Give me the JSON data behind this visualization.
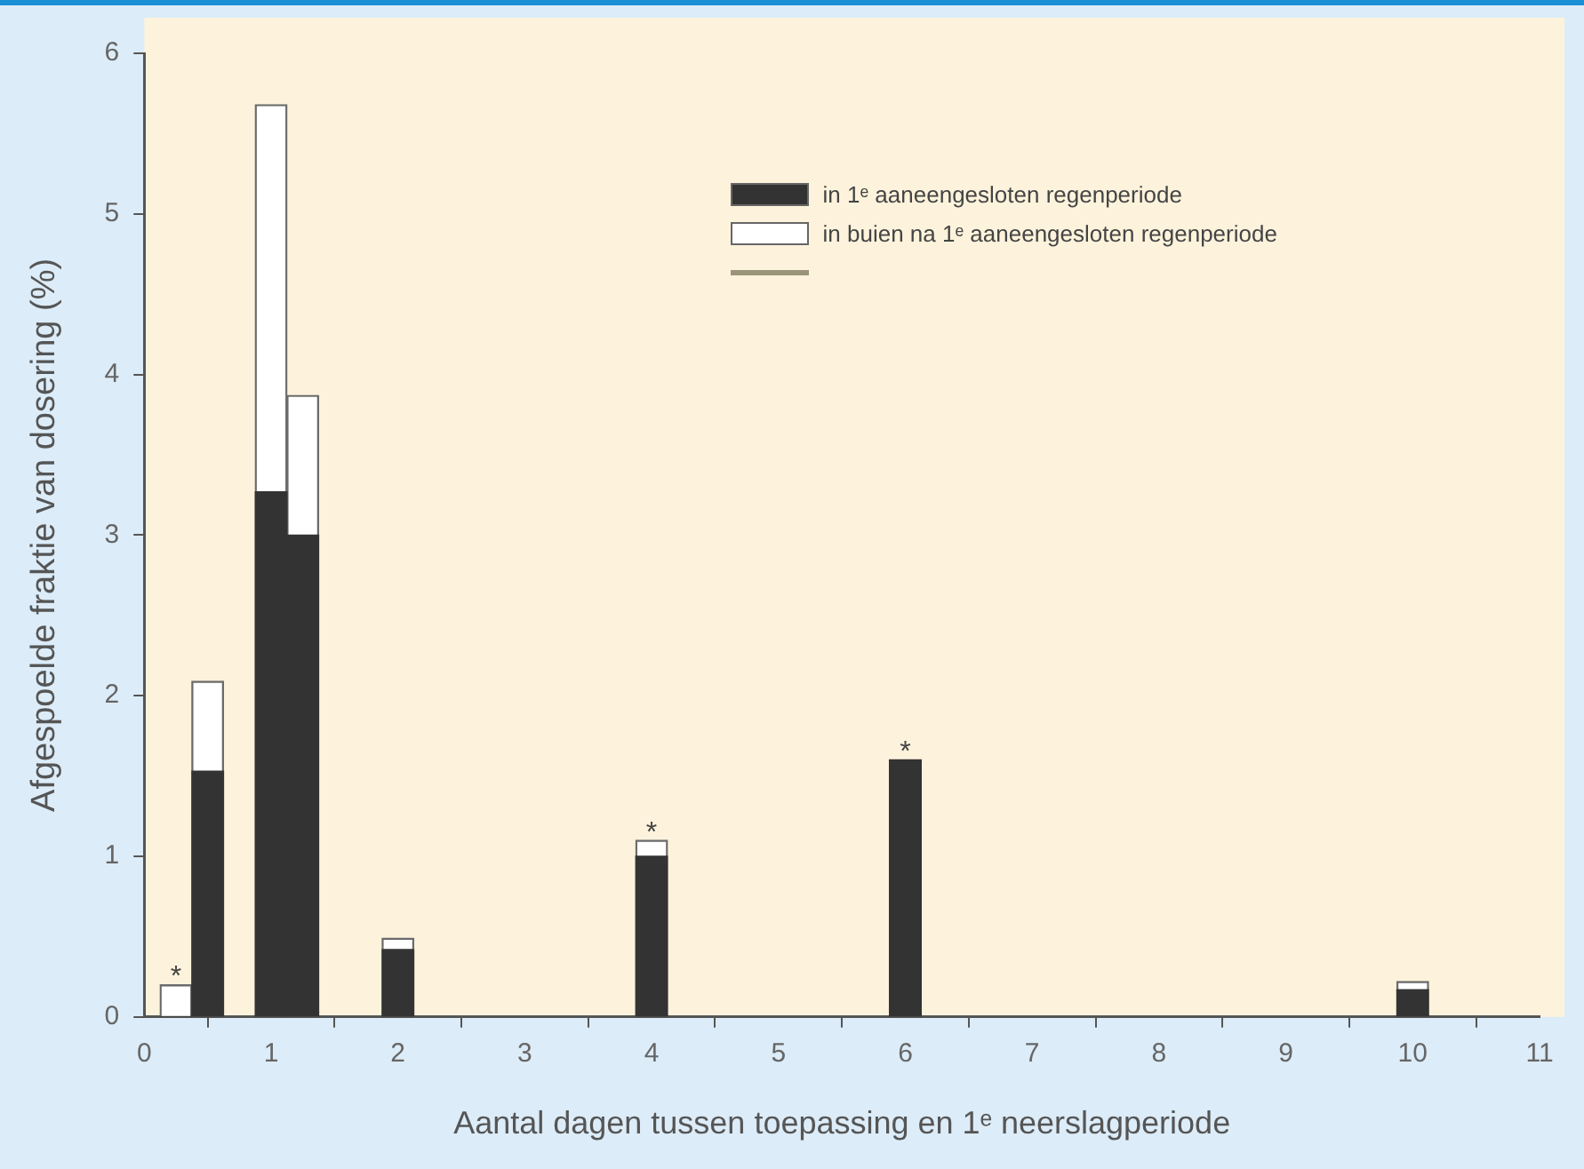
{
  "chart_data": {
    "type": "bar",
    "stacked": true,
    "xlabel": "Aantal dagen tussen toepassing en 1ᵉ neerslagperiode",
    "ylabel": "Afgespoelde fraktie van dosering (%)",
    "x": [
      0.25,
      0.5,
      1,
      1.25,
      2,
      4,
      6,
      10
    ],
    "series": [
      {
        "name": "in 1ᵉ aaneengesloten regenperiode",
        "color": "#333333",
        "values": [
          0,
          1.53,
          3.27,
          3.0,
          0.42,
          1.0,
          1.6,
          0.17
        ]
      },
      {
        "name": "in buien na 1ᵉ aaneengesloten regenperiode",
        "color": "#ffffff",
        "values": [
          0.2,
          0.56,
          2.41,
          0.87,
          0.07,
          0.1,
          0,
          0.05
        ]
      }
    ],
    "xlim": [
      0,
      11
    ],
    "xticks": [
      0,
      1,
      2,
      3,
      4,
      5,
      6,
      7,
      8,
      9,
      10,
      11
    ],
    "ylim": [
      0,
      6
    ],
    "yticks": [
      0,
      1,
      2,
      3,
      4,
      5,
      6
    ],
    "annotations": [
      {
        "text": "*",
        "x": 0.25,
        "y": 0.2
      },
      {
        "text": "*",
        "x": 4,
        "y": 1.1
      },
      {
        "text": "*",
        "x": 6,
        "y": 1.6
      }
    ],
    "grid": false,
    "legend": "top right"
  }
}
